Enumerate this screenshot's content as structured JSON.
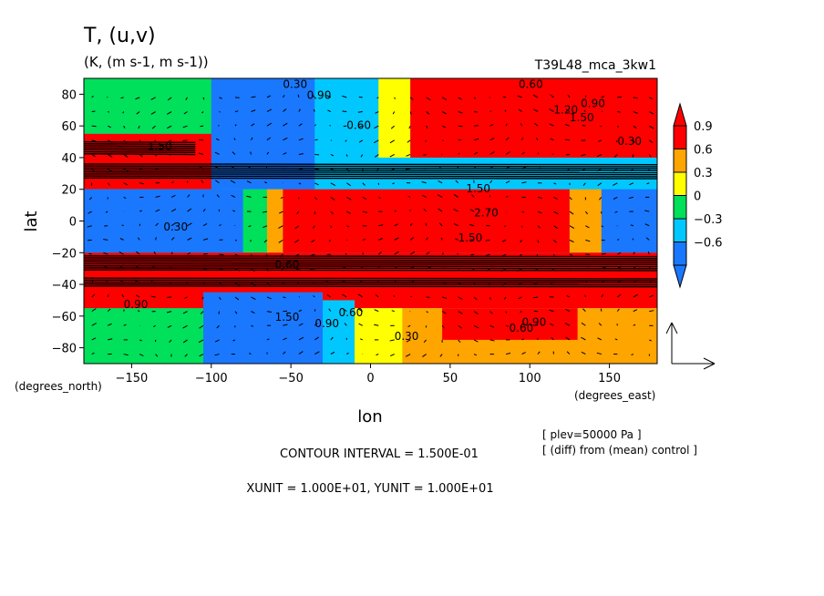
{
  "chart_data": {
    "type": "heatmap",
    "title": "T, (u,v)",
    "subtitle": "(K, (m s-1, m s-1))",
    "run_name": "T39L48_mca_3kw1",
    "xlabel": "lon",
    "ylabel": "lat",
    "x_units": "(degrees_east)",
    "y_units": "(degrees_north)",
    "xlim": [
      -180,
      180
    ],
    "ylim": [
      -90,
      90
    ],
    "x_ticks": [
      -150,
      -100,
      -50,
      0,
      50,
      100,
      150
    ],
    "y_ticks": [
      80,
      60,
      40,
      20,
      0,
      -20,
      -40,
      -60,
      -80
    ],
    "colorbar": {
      "labels": [
        "0.9",
        "0.6",
        "0.3",
        "0",
        "-0.3",
        "-0.6"
      ],
      "levels": [
        -0.9,
        -0.6,
        -0.3,
        0,
        0.3,
        0.6,
        0.9
      ],
      "colors": [
        "#1a78ff",
        "#00c8ff",
        "#00e05a",
        "#ffff00",
        "#ffa500",
        "#ff0000"
      ],
      "extend": "both"
    },
    "contour_labels": [
      {
        "text": "0.30",
        "lon": -55,
        "lat": 84
      },
      {
        "text": "0.90",
        "lon": -40,
        "lat": 77
      },
      {
        "text": "0.60",
        "lon": 93,
        "lat": 84
      },
      {
        "text": "0.90",
        "lon": 132,
        "lat": 72
      },
      {
        "text": "0.60",
        "lon": -15,
        "lat": 58
      },
      {
        "text": "1.20",
        "lon": 115,
        "lat": 68
      },
      {
        "text": "1.50",
        "lon": 125,
        "lat": 63
      },
      {
        "text": "0.30",
        "lon": 155,
        "lat": 48
      },
      {
        "text": "1.50",
        "lon": -140,
        "lat": 45
      },
      {
        "text": "0.30",
        "lon": -130,
        "lat": -6
      },
      {
        "text": "1.50",
        "lon": 60,
        "lat": 18
      },
      {
        "text": "2.70",
        "lon": 65,
        "lat": 3
      },
      {
        "text": "1.50",
        "lon": 55,
        "lat": -13
      },
      {
        "text": "0.60",
        "lon": -60,
        "lat": -30
      },
      {
        "text": "0.90",
        "lon": -155,
        "lat": -55
      },
      {
        "text": "1.50",
        "lon": -60,
        "lat": -63
      },
      {
        "text": "0.90",
        "lon": -35,
        "lat": -67
      },
      {
        "text": "0.60",
        "lon": -20,
        "lat": -60
      },
      {
        "text": "0.30",
        "lon": 15,
        "lat": -75
      },
      {
        "text": "0.60",
        "lon": 87,
        "lat": -70
      },
      {
        "text": "0.90",
        "lon": 95,
        "lat": -66
      }
    ],
    "field_regions": [
      {
        "lon": [
          -180,
          180
        ],
        "lat": [
          -90,
          90
        ],
        "value": -0.45
      },
      {
        "lon": [
          -180,
          -95
        ],
        "lat": [
          -90,
          -55
        ],
        "value": -0.15
      },
      {
        "lon": [
          -180,
          -95
        ],
        "lat": [
          55,
          90
        ],
        "value": 0.0
      },
      {
        "lon": [
          -180,
          -95
        ],
        "lat": [
          20,
          55
        ],
        "value": 1.0
      },
      {
        "lon": [
          -100,
          -35
        ],
        "lat": [
          20,
          90
        ],
        "value": -0.75
      },
      {
        "lon": [
          -35,
          5
        ],
        "lat": [
          30,
          90
        ],
        "value": -0.4
      },
      {
        "lon": [
          5,
          25
        ],
        "lat": [
          40,
          90
        ],
        "value": 0.1
      },
      {
        "lon": [
          25,
          180
        ],
        "lat": [
          40,
          90
        ],
        "value": 0.75
      },
      {
        "lon": [
          60,
          180
        ],
        "lat": [
          45,
          85
        ],
        "value": 1.0
      },
      {
        "lon": [
          -180,
          -80
        ],
        "lat": [
          -20,
          20
        ],
        "value": -0.75
      },
      {
        "lon": [
          -80,
          -65
        ],
        "lat": [
          -20,
          20
        ],
        "value": -0.2
      },
      {
        "lon": [
          -65,
          -55
        ],
        "lat": [
          -20,
          20
        ],
        "value": 0.45
      },
      {
        "lon": [
          -55,
          125
        ],
        "lat": [
          -20,
          20
        ],
        "value": 1.0
      },
      {
        "lon": [
          125,
          145
        ],
        "lat": [
          -20,
          20
        ],
        "value": 0.45
      },
      {
        "lon": [
          145,
          180
        ],
        "lat": [
          -20,
          20
        ],
        "value": -0.75
      },
      {
        "lon": [
          -180,
          180
        ],
        "lat": [
          -55,
          -20
        ],
        "value": 1.0
      },
      {
        "lon": [
          -105,
          -30
        ],
        "lat": [
          -90,
          -45
        ],
        "value": -0.75
      },
      {
        "lon": [
          -30,
          -10
        ],
        "lat": [
          -90,
          -50
        ],
        "value": -0.4
      },
      {
        "lon": [
          -10,
          20
        ],
        "lat": [
          -90,
          -55
        ],
        "value": 0.15
      },
      {
        "lon": [
          20,
          180
        ],
        "lat": [
          -90,
          -55
        ],
        "value": 0.45
      },
      {
        "lon": [
          45,
          130
        ],
        "lat": [
          -75,
          -55
        ],
        "value": 1.0
      }
    ],
    "annotations": [
      "[ plev=50000 Pa ]",
      "[ (diff) from (mean) control ]",
      "CONTOUR INTERVAL = 1.500E-01",
      "XUNIT = 1.000E+01, YUNIT = 1.000E+01"
    ]
  }
}
